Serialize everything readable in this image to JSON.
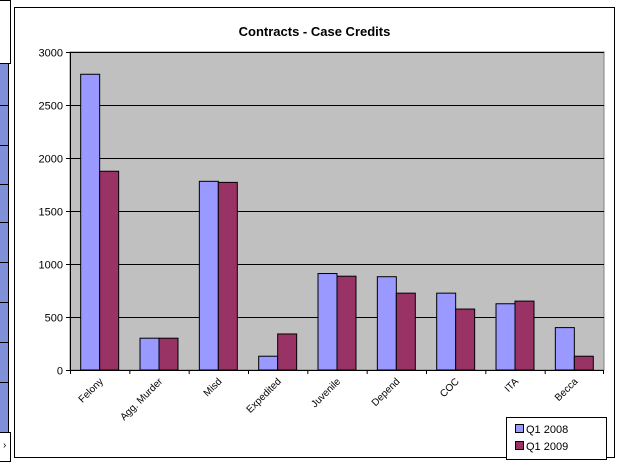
{
  "colors": {
    "series_1": "#9999ff",
    "series_2": "#993366",
    "plot_background": "#c0c0c0",
    "gridline": "#000000"
  },
  "chart_data": {
    "type": "bar",
    "title": "Contracts - Case Credits",
    "xlabel": "",
    "ylabel": "",
    "ylim": [
      0,
      3000
    ],
    "yticks": [
      "0",
      "500",
      "1000",
      "1500",
      "2000",
      "2500",
      "3000"
    ],
    "grid": true,
    "legend_position": "bottom-right",
    "categories": [
      "Felony",
      "Agg. Murder",
      "Misd",
      "Expedited",
      "Juvenile",
      "Depend",
      "COC",
      "ITA",
      "Becca"
    ],
    "series": [
      {
        "name": "Q1 2008",
        "values": [
          2790,
          300,
          1780,
          130,
          910,
          880,
          725,
          625,
          400
        ]
      },
      {
        "name": "Q1 2009",
        "values": [
          1875,
          300,
          1770,
          340,
          885,
          725,
          575,
          650,
          130
        ]
      }
    ]
  }
}
